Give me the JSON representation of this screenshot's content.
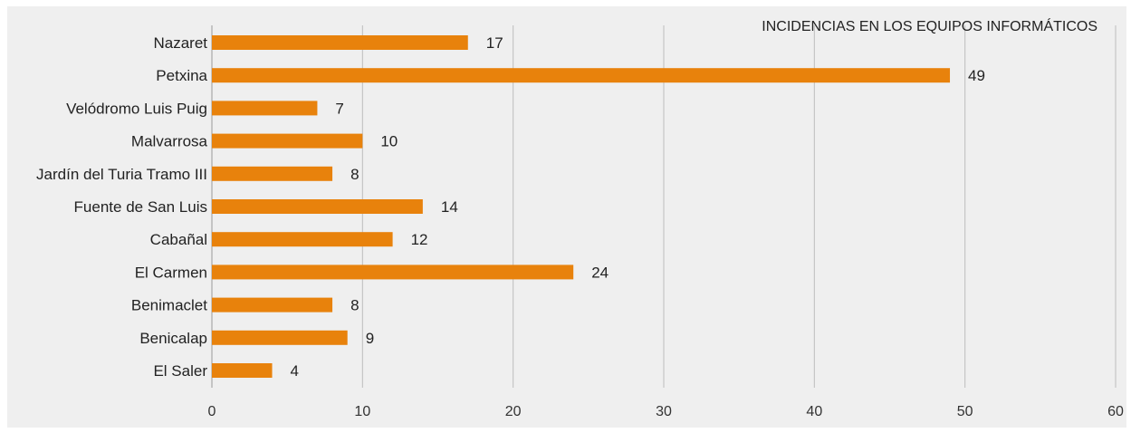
{
  "chart_data": {
    "type": "bar",
    "orientation": "horizontal",
    "title": "INCIDENCIAS EN LOS EQUIPOS INFORMÁTICOS",
    "categories": [
      "Nazaret",
      "Petxina",
      "Velódromo Luis Puig",
      "Malvarrosa",
      "Jardín del Turia Tramo III",
      "Fuente de San Luis",
      "Cabañal",
      "El Carmen",
      "Benimaclet",
      "Benicalap",
      "El Saler"
    ],
    "values": [
      17,
      49,
      7,
      10,
      8,
      14,
      12,
      24,
      8,
      9,
      4
    ],
    "xlim": [
      0,
      60
    ],
    "xticks": [
      0,
      10,
      20,
      30,
      40,
      50,
      60
    ],
    "grid": "vertical",
    "bar_color": "#e8820c",
    "background_color": "#efefef",
    "grid_color": "#bdbdbd",
    "data_labels": true
  }
}
